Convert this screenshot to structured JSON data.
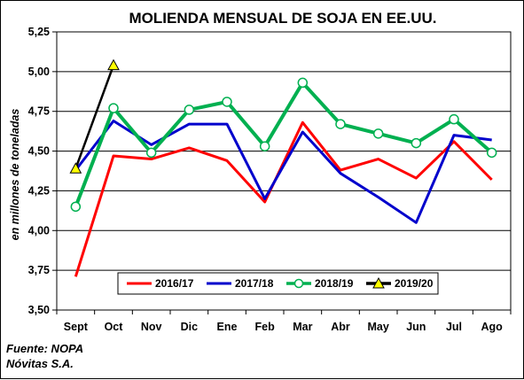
{
  "chart_data": {
    "type": "line",
    "title": "MOLIENDA MENSUAL DE SOJA EN EE.UU.",
    "ylabel": "en millones de toneladas",
    "xlabel": "",
    "categories": [
      "Sept",
      "Oct",
      "Nov",
      "Dic",
      "Ene",
      "Feb",
      "Mar",
      "Abr",
      "May",
      "Jun",
      "Jul",
      "Ago"
    ],
    "ylim": [
      3.5,
      5.25
    ],
    "yticks": [
      "3,50",
      "3,75",
      "4,00",
      "4,25",
      "4,50",
      "4,75",
      "5,00",
      "5,25"
    ],
    "grid": true,
    "legend_position": "bottom",
    "series": [
      {
        "name": "2016/17",
        "color": "#ff0000",
        "marker": "none",
        "values": [
          3.71,
          4.47,
          4.45,
          4.52,
          4.44,
          4.18,
          4.68,
          4.38,
          4.45,
          4.33,
          4.56,
          4.32
        ]
      },
      {
        "name": "2017/18",
        "color": "#0000cc",
        "marker": "none",
        "values": [
          4.38,
          4.69,
          4.54,
          4.67,
          4.67,
          4.2,
          4.62,
          4.36,
          4.21,
          4.05,
          4.6,
          4.57
        ]
      },
      {
        "name": "2018/19",
        "color": "#00b050",
        "marker": "circle",
        "values": [
          4.15,
          4.77,
          4.49,
          4.76,
          4.81,
          4.53,
          4.93,
          4.67,
          4.61,
          4.55,
          4.7,
          4.49
        ]
      },
      {
        "name": "2019/20",
        "color": "#000000",
        "marker": "triangle",
        "marker_fill": "#ffff00",
        "values": [
          4.39,
          5.04,
          null,
          null,
          null,
          null,
          null,
          null,
          null,
          null,
          null,
          null
        ]
      }
    ]
  },
  "source": {
    "line1": "Fuente: NOPA",
    "line2": "Nóvitas  S.A."
  }
}
